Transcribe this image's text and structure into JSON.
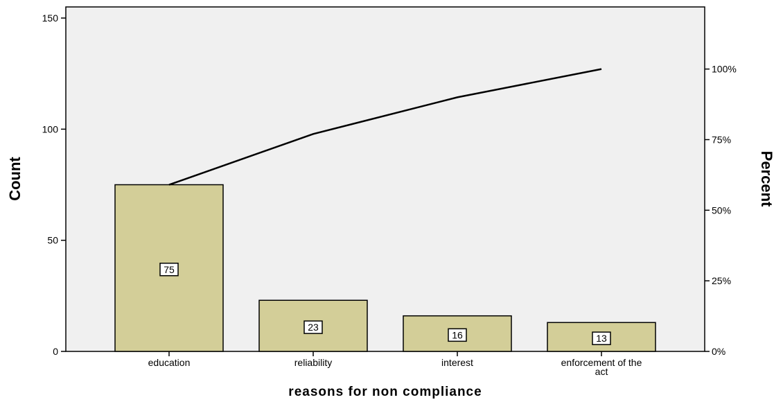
{
  "chart_data": {
    "type": "bar",
    "categories": [
      "education",
      "reliability",
      "interest",
      "enforcement of the act"
    ],
    "values": [
      75,
      23,
      16,
      13
    ],
    "data_labels": [
      "75",
      "23",
      "16",
      "13"
    ],
    "cumulative_percent": [
      59,
      77,
      90,
      100
    ],
    "xlabel": "reasons for non compliance",
    "ylabel": "Count",
    "ylabel_right": "Percent",
    "ylim": [
      0,
      155
    ],
    "yticks": [
      0,
      50,
      100,
      150
    ],
    "ytick_labels": [
      "0",
      "50",
      "100",
      "150"
    ],
    "ylim_right": [
      0,
      122
    ],
    "yticks_right": [
      0,
      25,
      50,
      75,
      100
    ],
    "ytick_labels_right": [
      "0%",
      "25%",
      "50%",
      "75%",
      "100%"
    ],
    "grid": false,
    "legend": "none",
    "colors": {
      "plot_background": "#f0f0f0",
      "bar_fill": "#d3ce98",
      "bar_stroke": "#000000",
      "line": "#000000",
      "label_box": "#ffffff"
    }
  }
}
